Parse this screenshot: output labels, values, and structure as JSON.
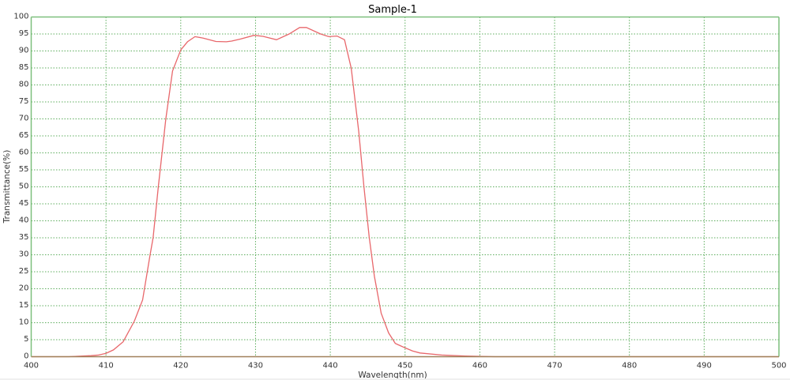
{
  "chart_data": {
    "type": "line",
    "title": "Sample-1",
    "xlabel": "Wavelength(nm)",
    "ylabel": "Transmittance(%)",
    "xlim": [
      400,
      500
    ],
    "ylim": [
      0,
      100
    ],
    "xticks": [
      400,
      410,
      420,
      430,
      440,
      450,
      460,
      470,
      480,
      490,
      500
    ],
    "yticks": [
      0,
      5,
      10,
      15,
      20,
      25,
      30,
      35,
      40,
      45,
      50,
      55,
      60,
      65,
      70,
      75,
      80,
      85,
      90,
      95,
      100
    ],
    "grid": true,
    "colors": {
      "line": "#e8676b",
      "axis": "#7dbf7d",
      "grid": "#5fae5f",
      "background": "#ffffff"
    },
    "series": [
      {
        "x": [
          400,
          405,
          408,
          409,
          410,
          411,
          412.3,
          413.8,
          414.9,
          415.9,
          416.3,
          417,
          418,
          418.9,
          420,
          420.9,
          421.9,
          423,
          424.7,
          426.1,
          426.8,
          428,
          429.8,
          431,
          432.8,
          434.5,
          435.9,
          436.8,
          438.7,
          439.8,
          440.9,
          441.9,
          442.8,
          443.8,
          444.5,
          445.2,
          445.9,
          446.8,
          447.8,
          448.7,
          449.9,
          451,
          452,
          454.9,
          458,
          462,
          500
        ],
        "y": [
          0,
          0,
          0.3,
          0.5,
          1,
          2,
          4.4,
          10.5,
          16.7,
          30,
          35,
          50,
          70,
          84.1,
          90.3,
          92.7,
          94.2,
          93.8,
          92.8,
          92.7,
          92.9,
          93.5,
          94.6,
          94.3,
          93.3,
          95,
          96.9,
          96.9,
          95,
          94.2,
          94.4,
          93.3,
          84.9,
          66.3,
          50,
          35.3,
          23.7,
          12.8,
          7,
          3.9,
          2.7,
          1.7,
          1.1,
          0.5,
          0.2,
          0,
          0
        ]
      }
    ]
  }
}
